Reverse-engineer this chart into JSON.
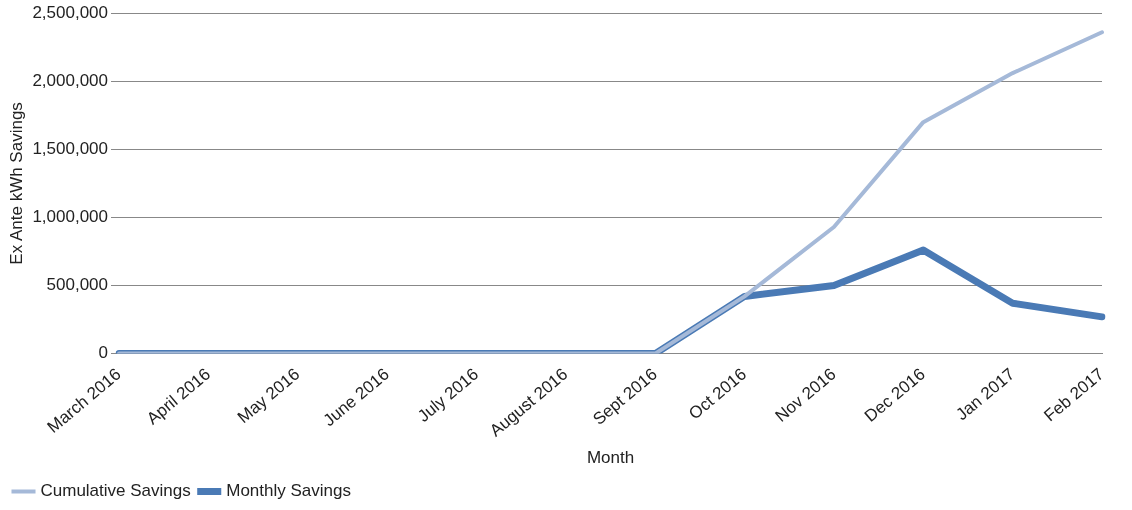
{
  "chart_data": {
    "type": "line",
    "xlabel": "Month",
    "ylabel": "Ex Ante kWh Savings",
    "categories": [
      "March 2016",
      "April 2016",
      "May 2016",
      "June 2016",
      "July 2016",
      "August 2016",
      "Sept 2016",
      "Oct 2016",
      "Nov 2016",
      "Dec 2016",
      "Jan 2017",
      "Feb 2017"
    ],
    "series": [
      {
        "name": "Monthly Savings",
        "color": "#4a7ab5",
        "values": [
          0,
          0,
          0,
          0,
          0,
          0,
          0,
          420000,
          500000,
          760000,
          370000,
          270000
        ]
      },
      {
        "name": "Cumulative Savings",
        "color": "#a5b9d8",
        "values": [
          0,
          0,
          0,
          0,
          0,
          0,
          0,
          420000,
          930000,
          1700000,
          2060000,
          2360000
        ]
      }
    ],
    "ylim": [
      0,
      2500000
    ],
    "yticks": [
      0,
      {
        "value": 500000,
        "label": "500,000"
      },
      {
        "value": 1000000,
        "label": "1,000,000"
      },
      {
        "value": 1500000,
        "label": "1,500,000"
      },
      {
        "value": 2000000,
        "label": "2,000,000"
      },
      {
        "value": 2500000,
        "label": "2,500,000"
      }
    ],
    "grid": "y",
    "legend": "bottom left",
    "marker": "none",
    "line_style": "solid"
  }
}
